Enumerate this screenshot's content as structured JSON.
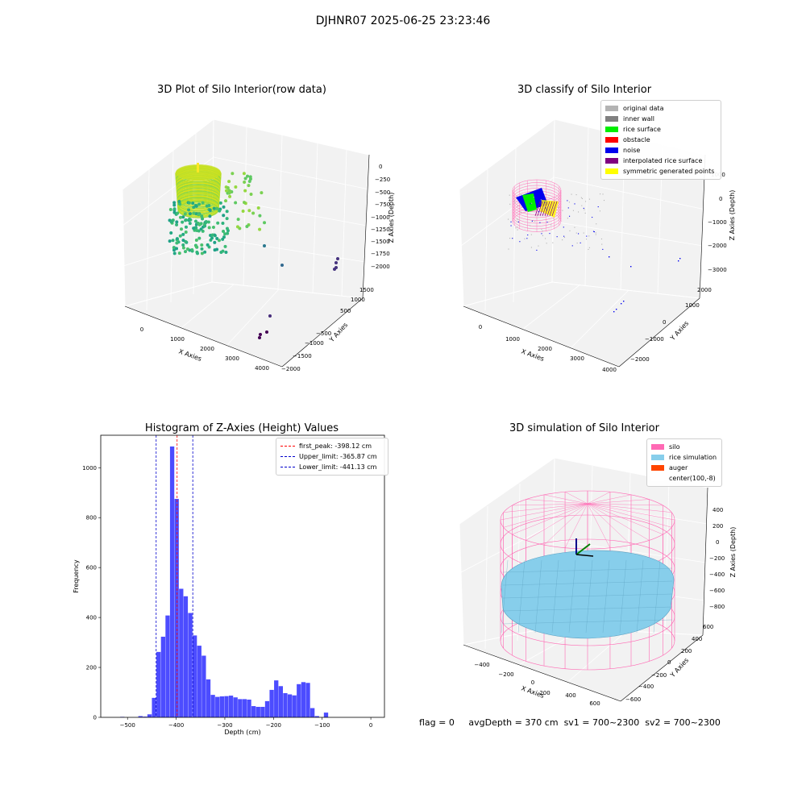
{
  "suptitle": "DJHNR07 2025-06-25 23:23:46",
  "panels": {
    "raw": {
      "title": "3D Plot of Silo Interior(row data)",
      "xlabel": "X Axies",
      "ylabel": "Y Axies",
      "zlabel": "Z Axies (Depth)",
      "xticks": [
        "0",
        "1000",
        "2000",
        "3000",
        "4000"
      ],
      "yticks": [
        "1500",
        "1000",
        "500",
        "−500",
        "−1000",
        "−1500",
        "−2000"
      ],
      "zticks": [
        "0",
        "−250",
        "−500",
        "−750",
        "−1000",
        "−1250",
        "−1500",
        "−1750",
        "−2000"
      ]
    },
    "classify": {
      "title": "3D classify of Silo Interior",
      "xlabel": "X Axies",
      "ylabel": "Y Axies",
      "zlabel": "Z Axies (Depth)",
      "xticks": [
        "0",
        "1000",
        "2000",
        "3000",
        "4000"
      ],
      "yticks": [
        "2000",
        "1000",
        "0",
        "−1000",
        "−2000"
      ],
      "zticks": [
        "1000",
        "0",
        "−1000",
        "−2000",
        "−3000"
      ],
      "legend": [
        {
          "label": "original data",
          "color": "#b3b3b3"
        },
        {
          "label": "inner wall",
          "color": "#808080"
        },
        {
          "label": "rice surface",
          "color": "#00ee00"
        },
        {
          "label": "obstacle",
          "color": "#ff0000"
        },
        {
          "label": "noise",
          "color": "#0000ee"
        },
        {
          "label": "interpolated rice surface",
          "color": "#800080"
        },
        {
          "label": "symmetric generated points",
          "color": "#ffff00"
        }
      ]
    },
    "sim": {
      "title": "3D simulation of Silo Interior",
      "xlabel": "X Axies",
      "ylabel": "Y Axies",
      "zlabel": "Z Axies (Depth)",
      "xticks": [
        "−400",
        "−200",
        "0",
        "200",
        "400",
        "600"
      ],
      "yticks": [
        "600",
        "400",
        "200",
        "0",
        "−200",
        "−400",
        "−600"
      ],
      "zticks": [
        "400",
        "200",
        "0",
        "−200",
        "−400",
        "−600",
        "−800"
      ],
      "legend": [
        {
          "label": "silo",
          "color": "#ff69b4"
        },
        {
          "label": "rice simulation",
          "color": "#87ceeb"
        },
        {
          "label": "auger",
          "color": "#ff4500"
        },
        {
          "label": "center(100,-8)",
          "color": "#ffffff"
        }
      ]
    }
  },
  "footer": {
    "flag": "flag = 0",
    "avg": "avgDepth = 370 cm",
    "sv1": "sv1 = 700~2300",
    "sv2": "sv2 = 700~2300"
  },
  "chart_data": {
    "type": "bar",
    "title": "Histogram of Z-Axies (Height) Values",
    "xlabel": "Depth (cm)",
    "ylabel": "Frequency",
    "xlim": [
      -555,
      28
    ],
    "ylim": [
      0,
      1130
    ],
    "bar_color": "#0000ff",
    "bin_start": -515,
    "bin_width": 9.3,
    "values": [
      2,
      0,
      0,
      0,
      5,
      3,
      12,
      78,
      262,
      323,
      408,
      1085,
      875,
      515,
      485,
      418,
      328,
      287,
      247,
      152,
      90,
      82,
      84,
      85,
      87,
      80,
      73,
      73,
      71,
      45,
      42,
      42,
      65,
      110,
      148,
      125,
      97,
      92,
      88,
      133,
      141,
      138,
      37,
      5,
      0,
      19
    ],
    "xticks": [
      -500,
      -400,
      -300,
      -200,
      -100,
      0
    ],
    "yticks": [
      0,
      200,
      400,
      600,
      800,
      1000
    ],
    "vlines": [
      {
        "label": "first_peak: -398.12 cm",
        "x": -398.12,
        "color": "#ff0000"
      },
      {
        "label": "Upper_limit: -365.87 cm",
        "x": -365.87,
        "color": "#0000cc"
      },
      {
        "label": "Lower_limit: -441.13 cm",
        "x": -441.13,
        "color": "#0000cc"
      }
    ]
  }
}
